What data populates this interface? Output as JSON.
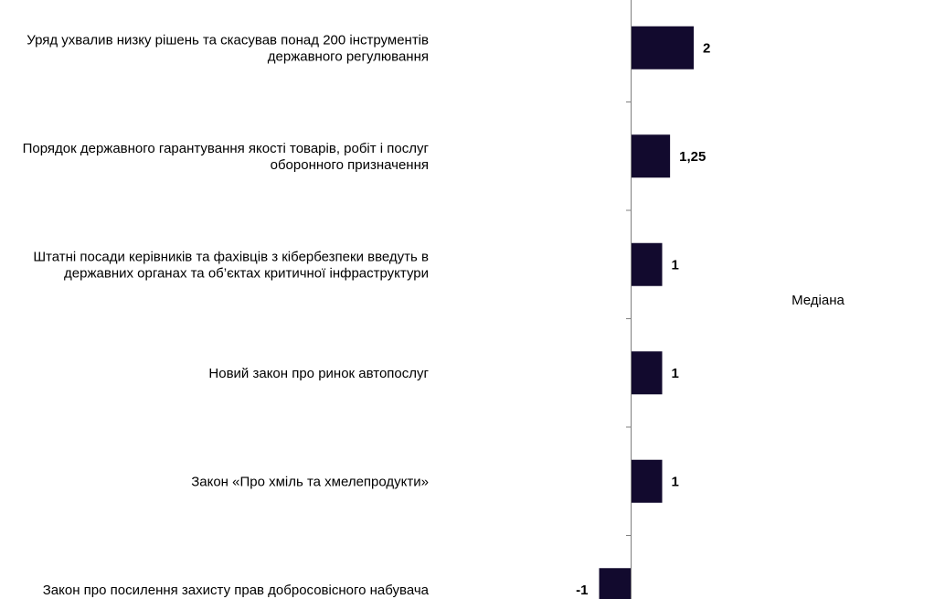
{
  "chart_data": {
    "type": "bar",
    "orientation": "horizontal",
    "categories": [
      [
        "Уряд ухвалив низку рішень та скасував понад 200 інструментів",
        "державного регулювання"
      ],
      [
        "Порядок державного гарантування якості товарів, робіт і послуг",
        "оборонного призначення"
      ],
      [
        "Штатні посади керівників та фахівців з кібербезпеки введуть в",
        "державних органах та об’єктах критичної інфраструктури"
      ],
      [
        "Новий закон про ринок автопослуг"
      ],
      [
        "Закон «Про хміль та хмелепродукти»"
      ],
      [
        "Закон про посилення захисту прав добросовісного набувача"
      ]
    ],
    "series": [
      {
        "name": "Медіана",
        "values": [
          2,
          1.25,
          1,
          1,
          1,
          -1
        ],
        "labels": [
          "2",
          "1,25",
          "1",
          "1",
          "1",
          "-1"
        ]
      }
    ],
    "legend_position": "right",
    "grid": false,
    "colors": {
      "bar": "#120a2e",
      "axis": "#808080"
    }
  }
}
